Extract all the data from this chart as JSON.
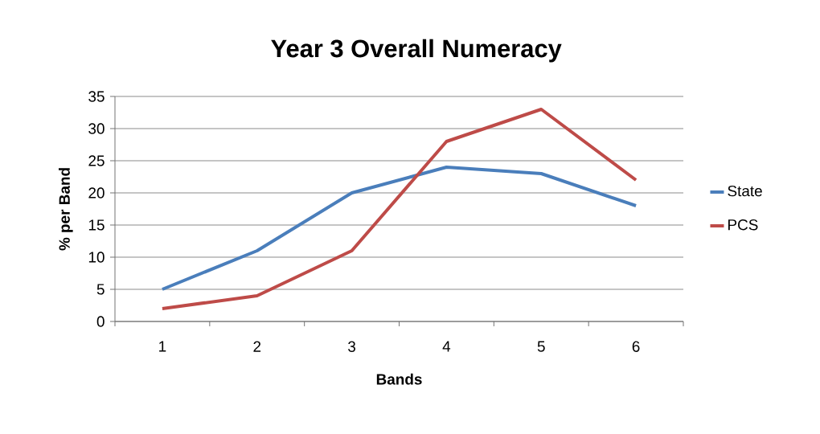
{
  "chart_data": {
    "type": "line",
    "title": "Year 3 Overall Numeracy",
    "xlabel": "Bands",
    "ylabel": "% per Band",
    "categories": [
      "1",
      "2",
      "3",
      "4",
      "5",
      "6"
    ],
    "series": [
      {
        "name": "State",
        "color": "#4a7ebb",
        "values": [
          5,
          11,
          20,
          24,
          23,
          18
        ]
      },
      {
        "name": "PCS",
        "color": "#be4b48",
        "values": [
          2,
          4,
          11,
          28,
          33,
          22
        ]
      }
    ],
    "ylim": [
      0,
      35
    ],
    "yticks": [
      0,
      5,
      10,
      15,
      20,
      25,
      30,
      35
    ],
    "grid": "y",
    "legend": "right",
    "marker": "none",
    "line_style": "solid"
  }
}
